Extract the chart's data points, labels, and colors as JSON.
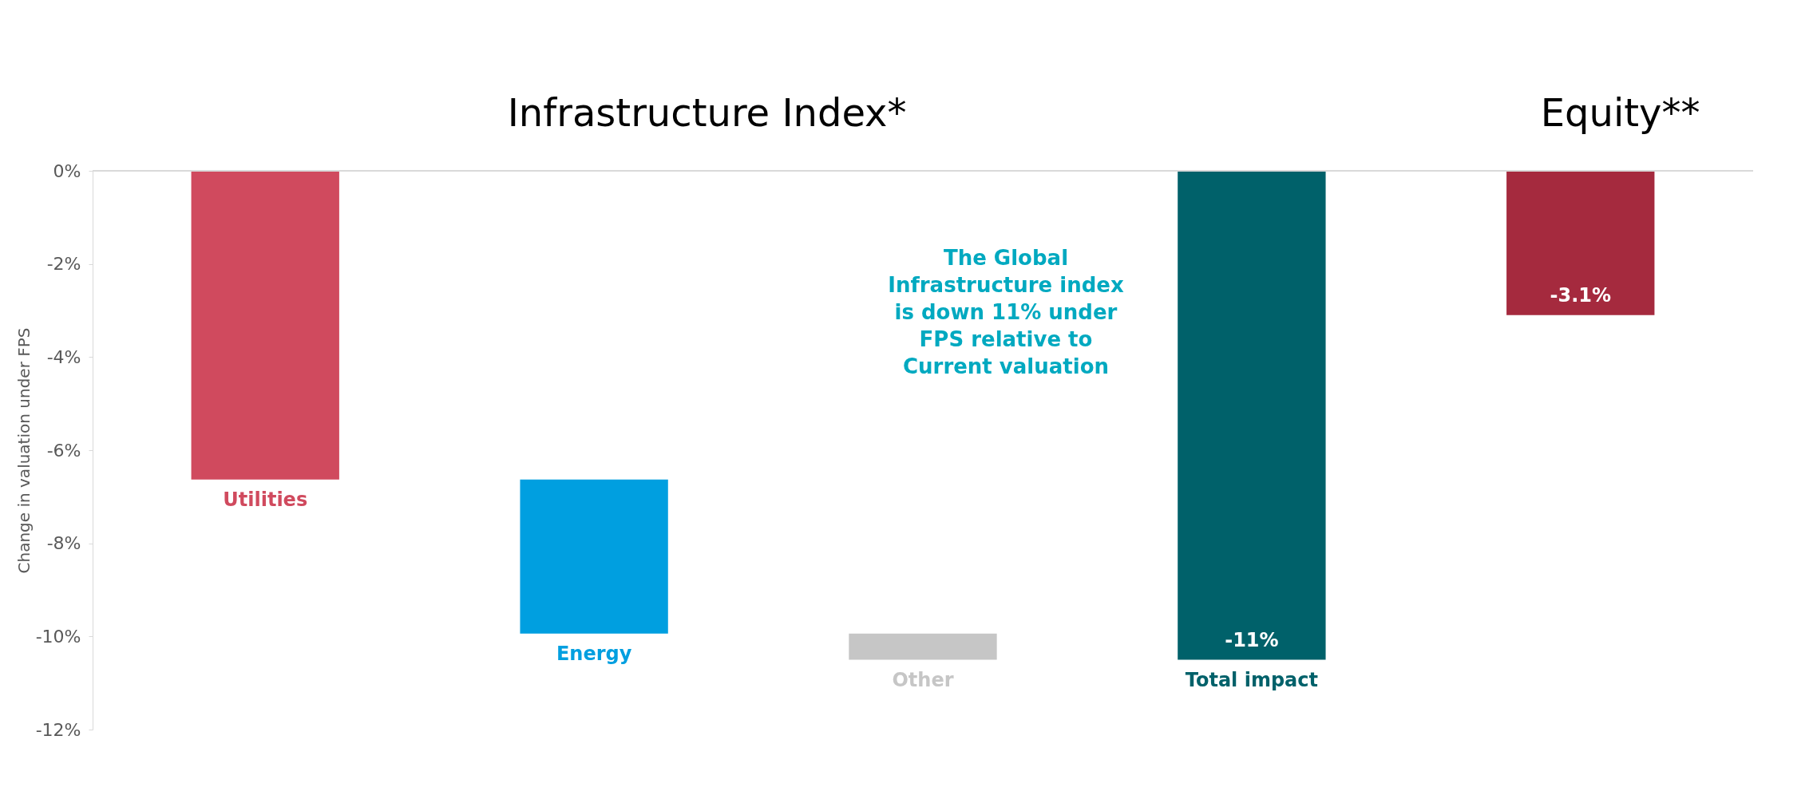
{
  "chart_data": {
    "type": "bar",
    "categories": [
      "Utilities",
      "Energy",
      "Other",
      "Total impact",
      null
    ],
    "values": [
      -6.63,
      -3.31,
      -0.56,
      -10.5,
      -3.1
    ],
    "base": [
      0,
      -6.63,
      -9.94,
      0,
      0
    ],
    "colors": [
      "#d04a5e",
      "#009fe0",
      "#c6c6c6",
      "#00616a",
      "#a52a3e"
    ],
    "value_labels": [
      null,
      null,
      null,
      "-11%",
      "-3.1%"
    ],
    "ylabel": "Change in valuation under FPS",
    "ylim": [
      -12,
      0
    ],
    "yticks": [
      {
        "value": 0,
        "label": "0%"
      },
      {
        "value": -2,
        "label": "-2%"
      },
      {
        "value": -4,
        "label": "-4%"
      },
      {
        "value": -6,
        "label": "-6%"
      },
      {
        "value": -8,
        "label": "-8%"
      },
      {
        "value": -10,
        "label": "-10%"
      },
      {
        "value": -12,
        "label": "-12%"
      }
    ],
    "ref_lines": [
      {
        "axis": "y",
        "value": 0,
        "color": "#d9d9d9"
      }
    ],
    "annotations": [
      "Infrastructure Index*",
      "Equity**",
      "The Global\nInfrastructure index\nis down 11% under\nFPS relative to\nCurrent valuation"
    ],
    "grid": false
  }
}
